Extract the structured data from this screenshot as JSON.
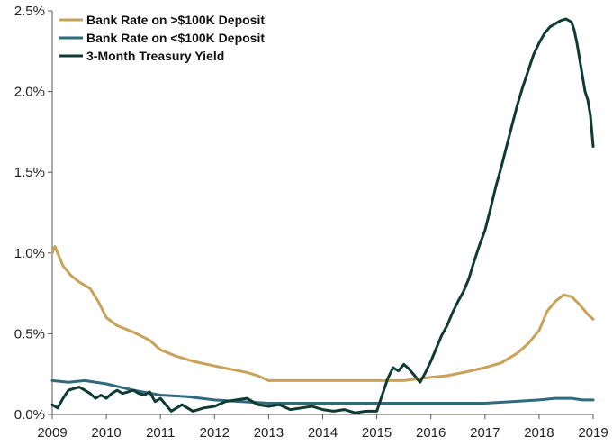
{
  "chart_data": {
    "type": "line",
    "title": "",
    "xlabel": "",
    "ylabel": "",
    "xlim": [
      2009,
      2019
    ],
    "ylim": [
      0,
      2.5
    ],
    "grid": false,
    "legend_position": "top-left",
    "x_ticks": [
      2009,
      2010,
      2011,
      2012,
      2013,
      2014,
      2015,
      2016,
      2017,
      2018,
      2019
    ],
    "x_tick_labels": [
      "2009",
      "2010",
      "2011",
      "2012",
      "2013",
      "2014",
      "2015",
      "2016",
      "2017",
      "2018",
      "2019"
    ],
    "y_ticks": [
      0,
      0.5,
      1.0,
      1.5,
      2.0,
      2.5
    ],
    "y_tick_labels": [
      "0.0%",
      "0.5%",
      "1.0%",
      "1.5%",
      "2.0%",
      "2.5%"
    ],
    "series": [
      {
        "name": "Bank Rate on >$100K Deposit",
        "color": "#c9a25a",
        "x": [
          2009.0,
          2009.05,
          2009.1,
          2009.2,
          2009.35,
          2009.5,
          2009.7,
          2009.85,
          2010.0,
          2010.2,
          2010.5,
          2010.8,
          2011.0,
          2011.3,
          2011.6,
          2012.0,
          2012.3,
          2012.6,
          2012.8,
          2013.0,
          2013.5,
          2014.0,
          2014.5,
          2015.0,
          2015.5,
          2016.0,
          2016.3,
          2016.6,
          2017.0,
          2017.3,
          2017.6,
          2017.8,
          2018.0,
          2018.15,
          2018.3,
          2018.45,
          2018.6,
          2018.75,
          2018.9,
          2019.0
        ],
        "y": [
          1.0,
          1.04,
          1.0,
          0.92,
          0.86,
          0.82,
          0.78,
          0.7,
          0.6,
          0.55,
          0.51,
          0.46,
          0.4,
          0.36,
          0.33,
          0.3,
          0.28,
          0.26,
          0.24,
          0.21,
          0.21,
          0.21,
          0.21,
          0.21,
          0.21,
          0.23,
          0.24,
          0.26,
          0.29,
          0.32,
          0.38,
          0.44,
          0.52,
          0.64,
          0.7,
          0.74,
          0.73,
          0.68,
          0.62,
          0.59
        ]
      },
      {
        "name": "Bank Rate on <$100K Deposit",
        "color": "#2e6a80",
        "x": [
          2009.0,
          2009.3,
          2009.6,
          2010.0,
          2010.5,
          2011.0,
          2011.5,
          2012.0,
          2012.5,
          2013.0,
          2013.5,
          2014.0,
          2014.5,
          2015.0,
          2015.5,
          2016.0,
          2016.5,
          2017.0,
          2017.5,
          2018.0,
          2018.3,
          2018.6,
          2018.8,
          2019.0
        ],
        "y": [
          0.21,
          0.2,
          0.21,
          0.19,
          0.15,
          0.12,
          0.11,
          0.09,
          0.08,
          0.07,
          0.07,
          0.07,
          0.07,
          0.07,
          0.07,
          0.07,
          0.07,
          0.07,
          0.08,
          0.09,
          0.1,
          0.1,
          0.09,
          0.09
        ]
      },
      {
        "name": "3-Month Treasury Yield",
        "color": "#0f3b32",
        "x": [
          2009.0,
          2009.1,
          2009.2,
          2009.3,
          2009.4,
          2009.5,
          2009.6,
          2009.7,
          2009.8,
          2009.9,
          2010.0,
          2010.1,
          2010.2,
          2010.3,
          2010.4,
          2010.5,
          2010.6,
          2010.7,
          2010.8,
          2010.9,
          2011.0,
          2011.2,
          2011.4,
          2011.6,
          2011.8,
          2012.0,
          2012.2,
          2012.4,
          2012.6,
          2012.8,
          2013.0,
          2013.2,
          2013.4,
          2013.6,
          2013.8,
          2014.0,
          2014.2,
          2014.4,
          2014.6,
          2014.8,
          2015.0,
          2015.1,
          2015.2,
          2015.3,
          2015.4,
          2015.5,
          2015.6,
          2015.7,
          2015.8,
          2015.9,
          2016.0,
          2016.1,
          2016.2,
          2016.3,
          2016.4,
          2016.5,
          2016.6,
          2016.7,
          2016.8,
          2016.9,
          2017.0,
          2017.1,
          2017.2,
          2017.3,
          2017.4,
          2017.5,
          2017.6,
          2017.7,
          2017.8,
          2017.9,
          2018.0,
          2018.1,
          2018.2,
          2018.3,
          2018.4,
          2018.5,
          2018.6,
          2018.65,
          2018.7,
          2018.75,
          2018.8,
          2018.85,
          2018.9,
          2018.95,
          2019.0
        ],
        "y": [
          0.06,
          0.04,
          0.1,
          0.15,
          0.16,
          0.17,
          0.15,
          0.13,
          0.1,
          0.12,
          0.1,
          0.13,
          0.15,
          0.13,
          0.14,
          0.15,
          0.13,
          0.12,
          0.14,
          0.08,
          0.1,
          0.02,
          0.06,
          0.02,
          0.04,
          0.05,
          0.08,
          0.09,
          0.1,
          0.06,
          0.05,
          0.06,
          0.03,
          0.04,
          0.05,
          0.03,
          0.02,
          0.03,
          0.01,
          0.02,
          0.02,
          0.12,
          0.22,
          0.29,
          0.27,
          0.31,
          0.28,
          0.24,
          0.2,
          0.26,
          0.33,
          0.41,
          0.49,
          0.55,
          0.63,
          0.7,
          0.76,
          0.84,
          0.95,
          1.05,
          1.14,
          1.27,
          1.41,
          1.53,
          1.66,
          1.79,
          1.92,
          2.03,
          2.13,
          2.23,
          2.3,
          2.36,
          2.4,
          2.42,
          2.44,
          2.45,
          2.43,
          2.38,
          2.3,
          2.2,
          2.1,
          2.0,
          1.95,
          1.85,
          1.66
        ]
      }
    ]
  }
}
